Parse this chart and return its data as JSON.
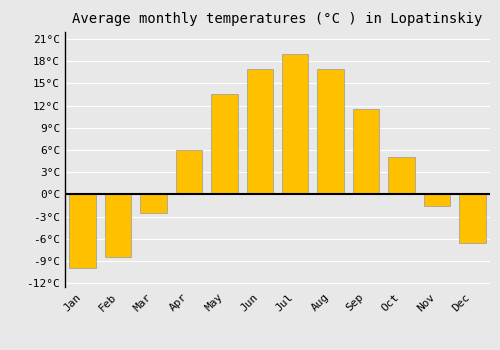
{
  "months": [
    "Jan",
    "Feb",
    "Mar",
    "Apr",
    "May",
    "Jun",
    "Jul",
    "Aug",
    "Sep",
    "Oct",
    "Nov",
    "Dec"
  ],
  "values": [
    -10.0,
    -8.5,
    -2.5,
    6.0,
    13.5,
    17.0,
    19.0,
    17.0,
    11.5,
    5.0,
    -1.5,
    -6.5
  ],
  "bar_color_top": "#FFC000",
  "bar_color_bottom": "#FFA000",
  "bar_edge_color": "#999999",
  "title": "Average monthly temperatures (°C ) in Lopatinskiy",
  "title_fontsize": 10,
  "title_font": "monospace",
  "ylim": [
    -12.5,
    22
  ],
  "yticks": [
    -12,
    -9,
    -6,
    -3,
    0,
    3,
    6,
    9,
    12,
    15,
    18,
    21
  ],
  "ytick_labels": [
    "-12°C",
    "-9°C",
    "-6°C",
    "-3°C",
    "0°C",
    "3°C",
    "6°C",
    "9°C",
    "12°C",
    "15°C",
    "18°C",
    "21°C"
  ],
  "background_color": "#e8e8e8",
  "plot_bg_color": "#e8e8e8",
  "grid_color": "#ffffff",
  "zero_line_color": "#000000",
  "tick_font": "monospace",
  "tick_fontsize": 8,
  "bar_width": 0.75
}
